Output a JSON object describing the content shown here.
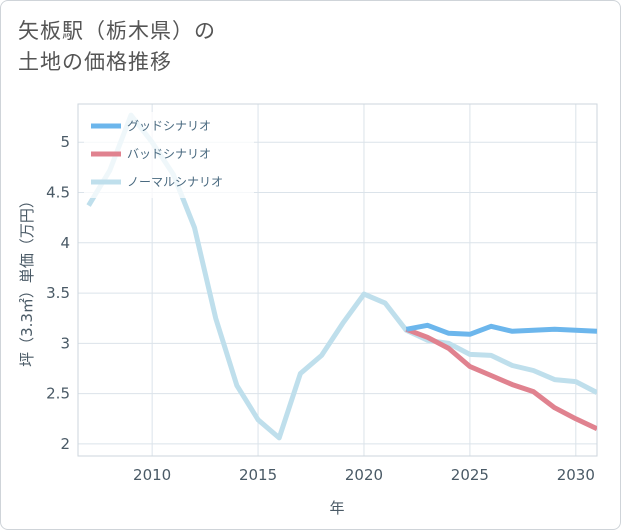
{
  "title": {
    "line1": "矢板駅（栃木県）の",
    "line2": "土地の価格推移"
  },
  "chart_data": {
    "type": "line",
    "xlabel": "年",
    "ylabel": "坪（3.3㎡）単価（万円）",
    "xlim": [
      2006.5,
      2031
    ],
    "ylim": [
      1.88,
      5.38
    ],
    "xticks": [
      2010,
      2015,
      2020,
      2025,
      2030
    ],
    "xtick_labels": [
      "2010",
      "2015",
      "2020",
      "2025",
      "2030"
    ],
    "yticks": [
      2,
      2.5,
      3,
      3.5,
      4,
      4.5,
      5
    ],
    "ytick_labels": [
      "2",
      "2.5",
      "3",
      "3.5",
      "4",
      "4.5",
      "5"
    ],
    "grid": true,
    "legend_position": "top-left",
    "series": [
      {
        "name": "グッドシナリオ",
        "color": "#6cb6ec",
        "x": [
          2022,
          2023,
          2024,
          2025,
          2026,
          2027,
          2028,
          2029,
          2030,
          2031
        ],
        "y": [
          3.14,
          3.18,
          3.1,
          3.09,
          3.17,
          3.12,
          3.13,
          3.14,
          3.13,
          3.12
        ]
      },
      {
        "name": "バッドシナリオ",
        "color": "#e0828f",
        "x": [
          2022,
          2023,
          2024,
          2025,
          2026,
          2027,
          2028,
          2029,
          2030,
          2031
        ],
        "y": [
          3.14,
          3.06,
          2.95,
          2.77,
          2.68,
          2.59,
          2.52,
          2.36,
          2.25,
          2.15
        ]
      },
      {
        "name": "ノーマルシナリオ",
        "color": "#bfdfec",
        "x": [
          2007,
          2008,
          2009,
          2010,
          2011,
          2012,
          2013,
          2014,
          2015,
          2016,
          2017,
          2018,
          2019,
          2020,
          2021,
          2022,
          2023,
          2024,
          2025,
          2026,
          2027,
          2028,
          2029,
          2030,
          2031
        ],
        "y": [
          4.37,
          4.72,
          5.27,
          5.0,
          4.68,
          4.15,
          3.25,
          2.58,
          2.24,
          2.06,
          2.7,
          2.88,
          3.2,
          3.49,
          3.4,
          3.13,
          3.03,
          3.0,
          2.89,
          2.88,
          2.78,
          2.73,
          2.64,
          2.62,
          2.51
        ]
      }
    ]
  }
}
